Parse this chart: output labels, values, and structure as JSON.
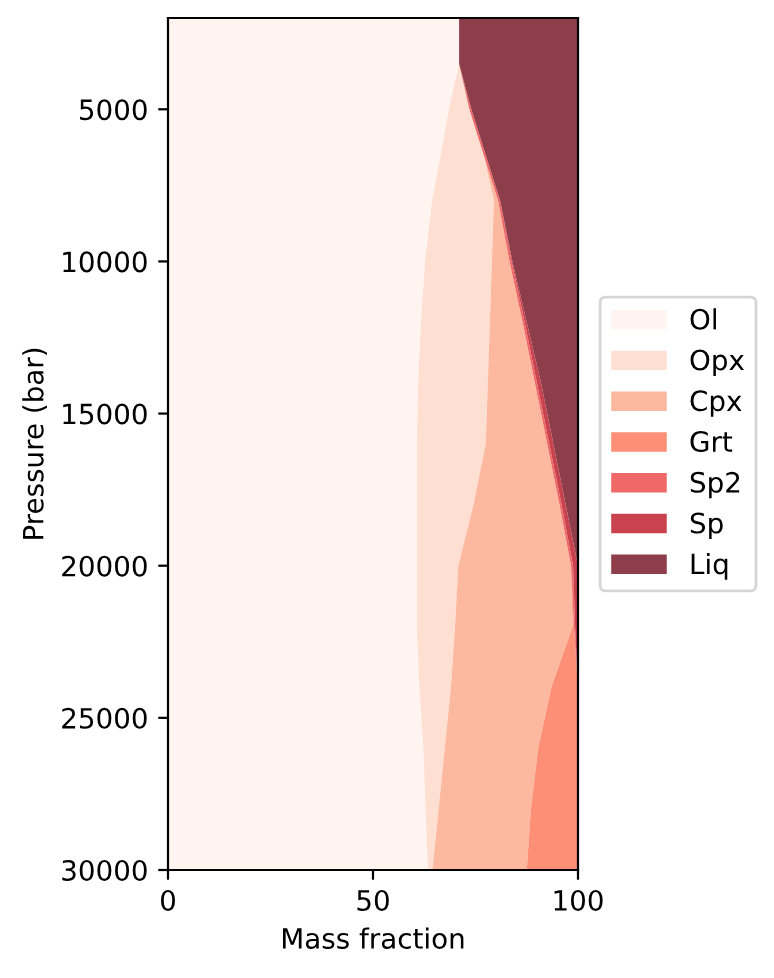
{
  "chart_data": {
    "type": "area",
    "stacked": true,
    "orientation": "horizontal",
    "xlabel": "Mass fraction",
    "ylabel": "Pressure (bar)",
    "x": [
      2000,
      3500,
      5000,
      6500,
      8000,
      10000,
      12000,
      14000,
      16000,
      18000,
      20000,
      22000,
      24000,
      26000,
      28000,
      30000
    ],
    "series": [
      {
        "name": "Ol",
        "color": "#fff4f0",
        "values": [
          71,
          71,
          68.5,
          66.5,
          64.4,
          62.7,
          61.7,
          61,
          60.7,
          60.7,
          60.7,
          60.7,
          61.3,
          62.3,
          62.8,
          63.4
        ]
      },
      {
        "name": "Opx",
        "color": "#fedfd2",
        "values": [
          0,
          0,
          5,
          10.5,
          15.1,
          16.3,
          16.8,
          17,
          16.8,
          13.8,
          10.1,
          9.3,
          7.7,
          5.2,
          3.2,
          1.1
        ]
      },
      {
        "name": "Cpx",
        "color": "#fdb9a0",
        "values": [
          0,
          0,
          0,
          0,
          1,
          4.3,
          8,
          11.5,
          15,
          21,
          27.5,
          28.7,
          24.5,
          22.8,
          22.5,
          23
        ]
      },
      {
        "name": "Grt",
        "color": "#fc8f75",
        "values": [
          0,
          0,
          0,
          0,
          0,
          0,
          0,
          0,
          0,
          0,
          0,
          0.3,
          6.5,
          9.7,
          11.5,
          12.5
        ]
      },
      {
        "name": "Sp2",
        "color": "#f06868",
        "values": [
          null,
          0,
          0.5,
          0.5,
          0.5,
          0.5,
          0.5,
          0.5,
          0.5,
          0.5,
          0.5,
          0.3,
          0,
          null,
          null,
          null
        ]
      },
      {
        "name": "Sp",
        "color": "#c8434d",
        "values": [
          null,
          null,
          null,
          null,
          0,
          0.2,
          0.5,
          1,
          1,
          1,
          1.2,
          0.7,
          0,
          null,
          null,
          null
        ]
      },
      {
        "name": "Liq",
        "color": "#8e3d4a",
        "values": [
          29,
          29,
          26,
          22.5,
          19,
          16,
          12.5,
          9,
          6,
          3,
          0,
          null,
          null,
          null,
          null,
          null
        ]
      }
    ],
    "xlim": [
      0,
      100
    ],
    "xticks": [
      0,
      50,
      100
    ],
    "ylim": [
      30000,
      2000
    ],
    "yticks": [
      5000,
      10000,
      15000,
      20000,
      25000,
      30000
    ],
    "legend": "right",
    "grid": false
  }
}
